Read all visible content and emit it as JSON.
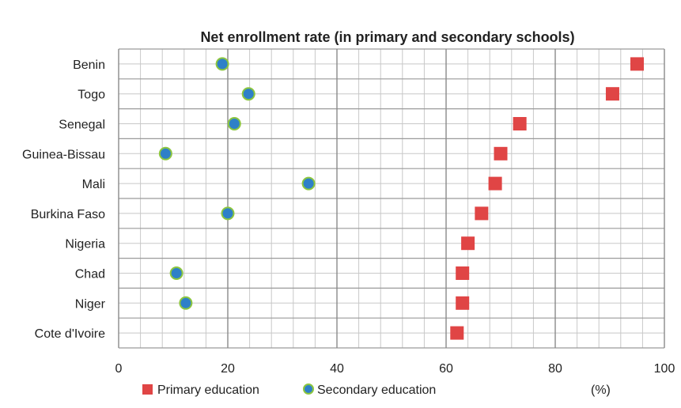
{
  "chart_data": {
    "type": "scatter",
    "title": "Net enrollment rate (in primary and secondary schools)",
    "unit": "(%)",
    "xlim": [
      0,
      100
    ],
    "x_ticks": [
      0,
      20,
      40,
      60,
      80,
      100
    ],
    "minor_step": 4,
    "grid": true,
    "legend_position": "bottom",
    "categories": [
      "Benin",
      "Togo",
      "Senegal",
      "Guinea-Bissau",
      "Mali",
      "Burkina Faso",
      "Nigeria",
      "Chad",
      "Niger",
      "Cote d'Ivoire"
    ],
    "series": [
      {
        "name": "Primary education",
        "marker": "square",
        "color": "#e04545",
        "values": [
          95,
          90.5,
          73.5,
          70,
          69,
          66.5,
          64,
          63,
          63,
          62
        ]
      },
      {
        "name": "Secondary education",
        "marker": "circle",
        "color": "#2e80c8",
        "edge_color": "#8cc63f",
        "values": [
          19,
          23.8,
          21.2,
          8.6,
          34.8,
          20,
          null,
          10.6,
          12.3,
          null
        ]
      }
    ]
  }
}
